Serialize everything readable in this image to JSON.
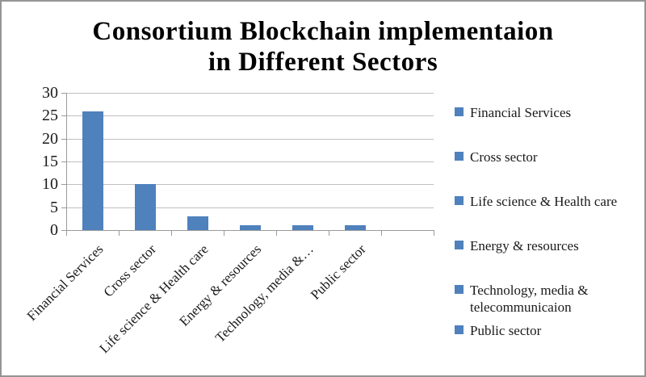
{
  "title": {
    "line1": "Consortium Blockchain implementaion",
    "line2": "in Different Sectors"
  },
  "chart_data": {
    "type": "bar",
    "title": "Consortium Blockchain implementaion in Different Sectors",
    "categories": [
      "Financial Services",
      "Cross sector",
      "Life science & Health care",
      "Energy & resources",
      "Technology, media & telecommunicaion",
      "Public sector"
    ],
    "x_tick_labels": [
      "Financial Services",
      "Cross sector",
      "Life science & Health care",
      "Energy & resources",
      "Technology, media &…",
      "Public sector"
    ],
    "values": [
      26,
      10,
      3,
      1,
      1,
      1
    ],
    "xlabel": "",
    "ylabel": "",
    "ylim": [
      0,
      30
    ],
    "yticks": [
      0,
      5,
      10,
      15,
      20,
      25,
      30
    ],
    "grid": "horizontal",
    "legend_position": "right",
    "legend_entries": [
      "Financial Services",
      "Cross sector",
      "Life science & Health care",
      "Energy & resources",
      "Technology, media & telecommunicaion",
      "Public sector"
    ],
    "bar_color": "#4f81bd"
  },
  "colors": {
    "bar": "#4f81bd",
    "gridline": "#bfbfbf",
    "axis": "#9a9a9a",
    "text": "#1a1a1a",
    "border": "#959595"
  }
}
